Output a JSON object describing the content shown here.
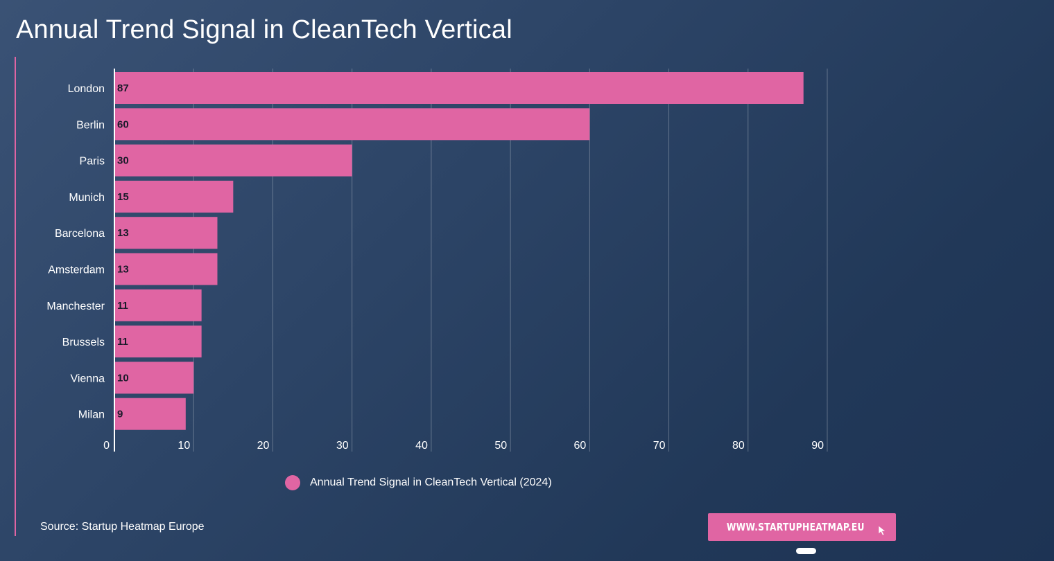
{
  "title": "Annual Trend Signal in CleanTech Vertical",
  "legend_label": "Annual Trend Signal in CleanTech Vertical (2024)",
  "source": "Source: Startup Heatmap Europe",
  "site_button": "WWW.STARTUPHEATMAP.EU",
  "colors": {
    "bar": "#e065a3",
    "accent": "#e065a3",
    "background": "#2c4466"
  },
  "chart_data": {
    "type": "bar",
    "orientation": "horizontal",
    "categories": [
      "London",
      "Berlin",
      "Paris",
      "Munich",
      "Barcelona",
      "Amsterdam",
      "Manchester",
      "Brussels",
      "Vienna",
      "Milan"
    ],
    "series": [
      {
        "name": "Annual Trend Signal in CleanTech Vertical (2024)",
        "values": [
          87,
          60,
          30,
          15,
          13,
          13,
          11,
          11,
          10,
          9
        ]
      }
    ],
    "xlim": [
      0,
      90
    ],
    "xticks": [
      0,
      10,
      20,
      30,
      40,
      50,
      60,
      70,
      80,
      90
    ],
    "grid": true,
    "legend": "bottom"
  }
}
